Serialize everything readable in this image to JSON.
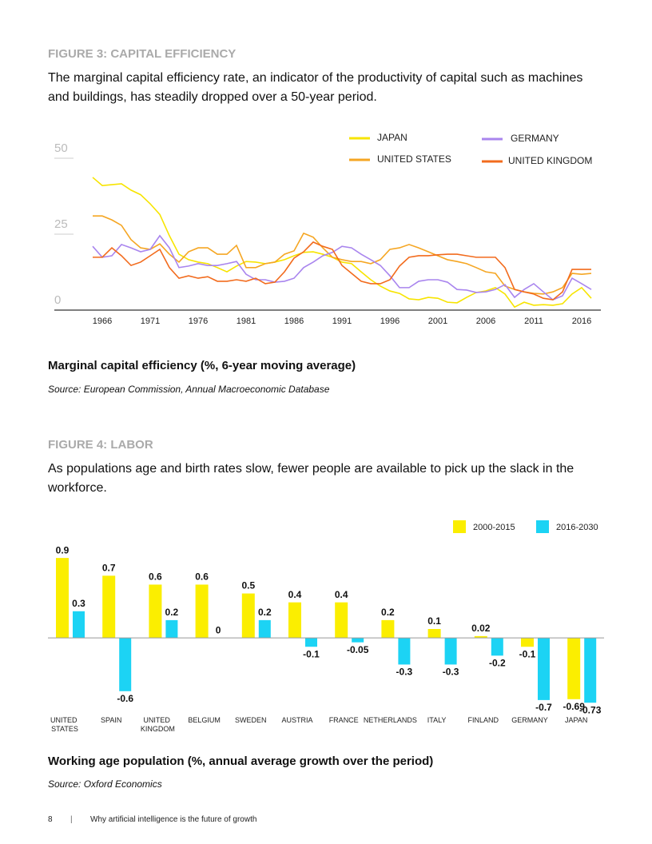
{
  "chart_data": [
    {
      "type": "line",
      "heading": "FIGURE 3: CAPITAL EFFICIENCY",
      "description": "The marginal capital efficiency rate, an indicator of the productivity of capital such as machines and buildings, has steadily dropped over a 50-year period.",
      "caption": "Marginal capital efficiency (%, 6-year moving average)",
      "source": "Source: European Commission, Annual Macroeconomic Database",
      "x": [
        1965,
        1966,
        1967,
        1968,
        1969,
        1970,
        1971,
        1972,
        1973,
        1974,
        1975,
        1976,
        1977,
        1978,
        1979,
        1980,
        1981,
        1982,
        1983,
        1984,
        1985,
        1986,
        1987,
        1988,
        1989,
        1990,
        1991,
        1992,
        1993,
        1994,
        1995,
        1996,
        1997,
        1998,
        1999,
        2000,
        2001,
        2002,
        2003,
        2004,
        2005,
        2006,
        2007,
        2008,
        2009,
        2010,
        2011,
        2012,
        2013,
        2014,
        2015,
        2016,
        2017
      ],
      "xlim": [
        1961,
        2018
      ],
      "xticks": [
        1966,
        1971,
        1976,
        1981,
        1986,
        1991,
        1996,
        2001,
        2006,
        2011,
        2016
      ],
      "ylim": [
        0,
        55
      ],
      "yticks": [
        0,
        25,
        50
      ],
      "series": [
        {
          "name": "JAPAN",
          "color": "#f7e400",
          "values": [
            43.7,
            41,
            41.3,
            41.6,
            39.5,
            38,
            35,
            31.5,
            24.5,
            18.4,
            16.6,
            15.8,
            15.3,
            14,
            12.6,
            14.5,
            16,
            15.8,
            15.3,
            15.8,
            16.6,
            17.9,
            19,
            19.2,
            18.4,
            17.4,
            15.8,
            15.3,
            12.6,
            10,
            7.9,
            6.3,
            5.5,
            3.7,
            3.4,
            4.2,
            3.9,
            2.6,
            2.4,
            4.2,
            5.8,
            6.3,
            7.4,
            5.3,
            1,
            2.6,
            1.6,
            1.8,
            1.6,
            2.1,
            5.3,
            7.4,
            3.9
          ]
        },
        {
          "name": "UNITED STATES",
          "color": "#f5a623",
          "values": [
            31,
            31,
            29.7,
            27.9,
            23.2,
            20.5,
            20,
            21.8,
            18.4,
            15.8,
            19.2,
            20.5,
            20.5,
            18.4,
            18.4,
            21.3,
            14,
            14,
            15.3,
            15.8,
            18.4,
            19.5,
            25.3,
            24,
            20.5,
            17.4,
            16.6,
            16,
            16,
            15.3,
            16.6,
            20,
            20.5,
            21.6,
            20.5,
            19.2,
            17.9,
            16.6,
            16,
            15.3,
            14,
            12.6,
            12.1,
            7.9,
            6.8,
            6,
            5.5,
            5.3,
            6,
            7.4,
            12.1,
            11.8,
            12.1
          ]
        },
        {
          "name": "GERMANY",
          "color": "#a985ee",
          "values": [
            21,
            17.4,
            17.9,
            21.6,
            20.5,
            19.2,
            20,
            24.5,
            20.5,
            14,
            14.5,
            15.3,
            14.7,
            14.7,
            15.3,
            16,
            11.8,
            10,
            10,
            9.2,
            9.5,
            10.5,
            14,
            15.8,
            17.9,
            19,
            21,
            20.5,
            18.4,
            16.6,
            14.7,
            11.3,
            7.4,
            7.4,
            9.5,
            10,
            10,
            9.2,
            6.8,
            6.6,
            5.8,
            6,
            6.8,
            8.4,
            4.2,
            6.8,
            8.7,
            6,
            3.4,
            4.7,
            10.5,
            8.7,
            6.8
          ]
        },
        {
          "name": "UNITED KINGDOM",
          "color": "#f26b1d",
          "values": [
            17.4,
            17.4,
            20.5,
            17.9,
            14.7,
            15.8,
            17.9,
            20,
            14,
            10.5,
            11.3,
            10.5,
            11,
            9.5,
            9.5,
            10,
            9.5,
            10.5,
            8.7,
            9.2,
            12.6,
            17.1,
            19.2,
            22.4,
            21,
            20,
            14.7,
            12.1,
            9.5,
            8.7,
            8.7,
            10,
            14.5,
            17.4,
            17.9,
            17.9,
            18.2,
            18.4,
            18.4,
            17.9,
            17.4,
            17.4,
            17.4,
            14,
            6.8,
            6,
            5.3,
            3.9,
            3.4,
            6,
            13.4,
            13.4,
            13.4
          ]
        }
      ]
    },
    {
      "type": "bar",
      "heading": "FIGURE 4: LABOR",
      "description": "As populations age and birth rates slow, fewer people are available to pick up the slack in the workforce.",
      "caption": "Working age population (%, annual average growth over the period)",
      "source": "Source: Oxford Economics",
      "categories": [
        "UNITED STATES",
        "SPAIN",
        "UNITED KINGDOM",
        "BELGIUM",
        "SWEDEN",
        "AUSTRIA",
        "FRANCE",
        "NETHERLANDS",
        "ITALY",
        "FINLAND",
        "GERMANY",
        "JAPAN"
      ],
      "ylim": [
        -0.8,
        1.0
      ],
      "series": [
        {
          "name": "2000-2015",
          "color": "#fbee00",
          "values": [
            0.9,
            0.7,
            0.6,
            0.6,
            0.5,
            0.4,
            0.4,
            0.2,
            0.1,
            0.02,
            -0.1,
            -0.69
          ]
        },
        {
          "name": "2016-2030",
          "color": "#1cd3f4",
          "values": [
            0.3,
            -0.6,
            0.2,
            0,
            0.2,
            -0.1,
            -0.05,
            -0.3,
            -0.3,
            -0.2,
            -0.7,
            -0.73
          ]
        }
      ]
    }
  ],
  "footer": {
    "page": "8",
    "text": "Why artificial intelligence is the future of growth"
  }
}
